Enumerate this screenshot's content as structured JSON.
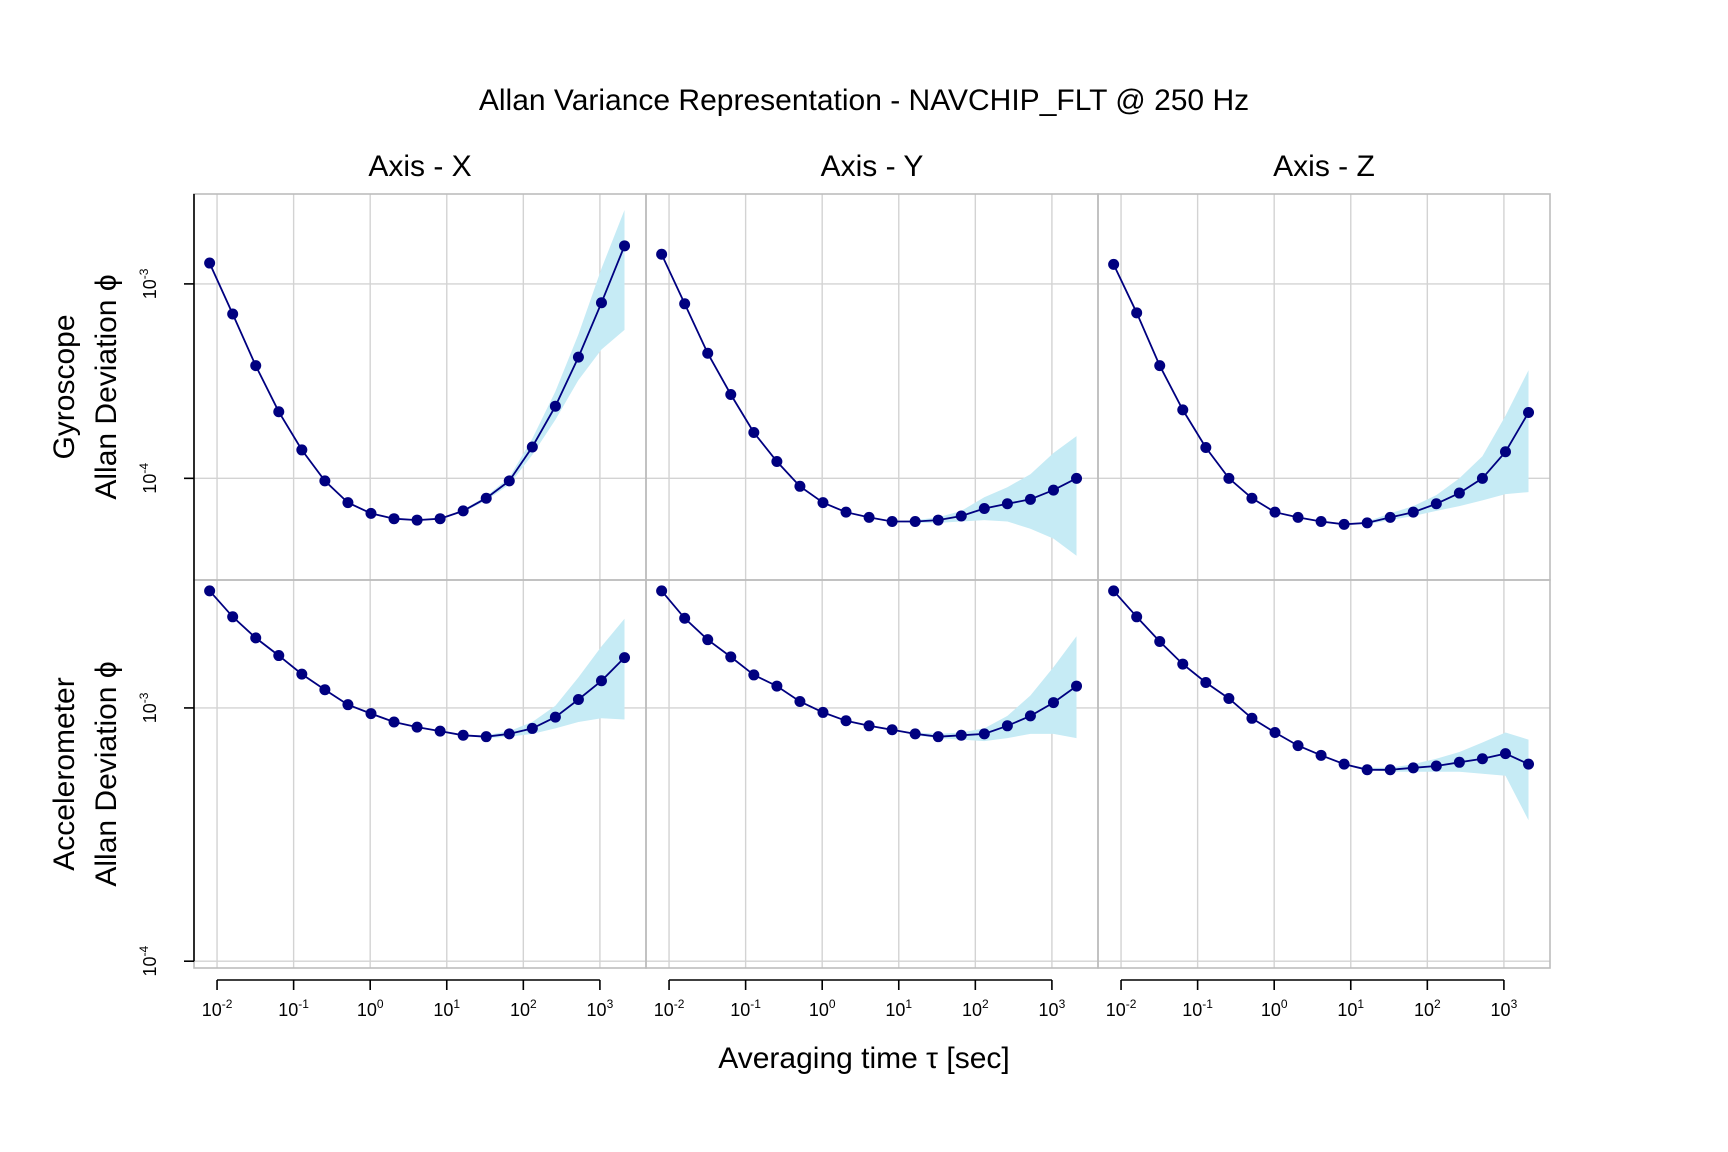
{
  "chart_data": {
    "type": "line",
    "title": "Allan Variance Representation - NAVCHIP_FLT @ 250 Hz",
    "xlabel": "Averaging time τ [sec]",
    "x_scale": "log",
    "y_scale": "log",
    "xlim": [
      0.005,
      4000
    ],
    "x_ticks": [
      "10^-2",
      "10^-1",
      "10^0",
      "10^1",
      "10^2",
      "10^3"
    ],
    "grid": true,
    "colors": {
      "line": "#000080",
      "marker": "#000080",
      "band": "#c6ebf5",
      "grid": "#d3d3d3",
      "frame": "#bdbdbd"
    },
    "tau": [
      0.008,
      0.016,
      0.032,
      0.064,
      0.128,
      0.256,
      0.512,
      1.024,
      2.048,
      4.096,
      8.192,
      16.384,
      32.768,
      65.536,
      131.072,
      262.144,
      524.288,
      1048.576,
      2097.152
    ],
    "columns": [
      "Axis - X",
      "Axis - Y",
      "Axis - Z"
    ],
    "rows": [
      {
        "label_line1": "Gyroscope",
        "label_line2": "Allan Deviation ϕ",
        "ylim": [
          3e-05,
          0.0029
        ],
        "y_ticks": [
          "10^-4",
          "10^-3"
        ],
        "panels": [
          {
            "axis": "Axis - X",
            "values": [
              0.00128,
              0.0007,
              0.00038,
              0.00022,
              0.00014,
              9.7e-05,
              7.5e-05,
              6.6e-05,
              6.2e-05,
              6.1e-05,
              6.2e-05,
              6.8e-05,
              7.9e-05,
              9.7e-05,
              0.000145,
              0.000235,
              0.00042,
              0.0008,
              0.00157
            ],
            "lower": [
              0.00128,
              0.0007,
              0.00038,
              0.00022,
              0.00014,
              9.7e-05,
              7.5e-05,
              6.6e-05,
              6.2e-05,
              6.1e-05,
              6.2e-05,
              6.7e-05,
              7.7e-05,
              9.3e-05,
              0.000132,
              0.0002,
              0.00032,
              0.00046,
              0.00058
            ],
            "upper": [
              0.00128,
              0.0007,
              0.00038,
              0.00022,
              0.00014,
              9.7e-05,
              7.5e-05,
              6.6e-05,
              6.2e-05,
              6.1e-05,
              6.2e-05,
              6.9e-05,
              8.1e-05,
              0.000101,
              0.00016,
              0.00028,
              0.00055,
              0.0012,
              0.0024
            ]
          },
          {
            "axis": "Axis - Y",
            "values": [
              0.00142,
              0.00079,
              0.00044,
              0.00027,
              0.000172,
              0.000122,
              9.1e-05,
              7.5e-05,
              6.7e-05,
              6.3e-05,
              6e-05,
              6e-05,
              6.1e-05,
              6.4e-05,
              7e-05,
              7.4e-05,
              7.8e-05,
              8.7e-05,
              0.0001
            ],
            "lower": [
              0.00142,
              0.00079,
              0.00044,
              0.00027,
              0.000172,
              0.000122,
              9.1e-05,
              7.5e-05,
              6.7e-05,
              6.3e-05,
              6e-05,
              5.9e-05,
              5.9e-05,
              6e-05,
              6.1e-05,
              6e-05,
              5.5e-05,
              4.9e-05,
              4e-05
            ],
            "upper": [
              0.00142,
              0.00079,
              0.00044,
              0.00027,
              0.000172,
              0.000122,
              9.1e-05,
              7.5e-05,
              6.7e-05,
              6.3e-05,
              6e-05,
              6.1e-05,
              6.3e-05,
              6.8e-05,
              8e-05,
              9e-05,
              0.000105,
              0.000135,
              0.000165
            ]
          },
          {
            "axis": "Axis - Z",
            "values": [
              0.00126,
              0.00071,
              0.00038,
              0.000225,
              0.000144,
              0.0001,
              7.9e-05,
              6.7e-05,
              6.3e-05,
              6e-05,
              5.8e-05,
              5.9e-05,
              6.3e-05,
              6.7e-05,
              7.4e-05,
              8.4e-05,
              0.0001,
              0.000137,
              0.000218
            ],
            "lower": [
              0.00126,
              0.00071,
              0.00038,
              0.000225,
              0.000144,
              0.0001,
              7.9e-05,
              6.7e-05,
              6.3e-05,
              6e-05,
              5.8e-05,
              5.8e-05,
              6.1e-05,
              6.4e-05,
              6.8e-05,
              7.2e-05,
              7.7e-05,
              8.3e-05,
              8.5e-05
            ],
            "upper": [
              0.00126,
              0.00071,
              0.00038,
              0.000225,
              0.000144,
              0.0001,
              7.9e-05,
              6.7e-05,
              6.3e-05,
              6e-05,
              5.8e-05,
              6e-05,
              6.6e-05,
              7.2e-05,
              8.2e-05,
              0.0001,
              0.00013,
              0.00021,
              0.00036
            ]
          }
        ]
      },
      {
        "label_line1": "Accelerometer",
        "label_line2": "Allan Deviation ϕ",
        "ylim": [
          9.4e-05,
          0.0032
        ],
        "y_ticks": [
          "10^-4",
          "10^-3"
        ],
        "panels": [
          {
            "axis": "Axis - X",
            "values": [
              0.0029,
              0.00229,
              0.00189,
              0.00161,
              0.00136,
              0.00118,
              0.00103,
              0.00095,
              0.00088,
              0.00084,
              0.00081,
              0.00078,
              0.00077,
              0.00079,
              0.00083,
              0.00092,
              0.00108,
              0.00128,
              0.00158
            ],
            "lower": [
              0.0029,
              0.00229,
              0.00189,
              0.00161,
              0.00136,
              0.00118,
              0.00103,
              0.00095,
              0.00088,
              0.00084,
              0.00081,
              0.00078,
              0.00076,
              0.00077,
              0.00079,
              0.00083,
              0.00088,
              0.00091,
              0.0009
            ],
            "upper": [
              0.0029,
              0.00229,
              0.00189,
              0.00161,
              0.00136,
              0.00118,
              0.00103,
              0.00095,
              0.00088,
              0.00084,
              0.00081,
              0.00078,
              0.00078,
              0.00081,
              0.00088,
              0.00102,
              0.00132,
              0.00175,
              0.00225
            ]
          },
          {
            "axis": "Axis - Y",
            "values": [
              0.0029,
              0.00226,
              0.00186,
              0.00159,
              0.00135,
              0.00122,
              0.00106,
              0.00096,
              0.00089,
              0.00085,
              0.00082,
              0.00079,
              0.00077,
              0.00078,
              0.00079,
              0.00085,
              0.00093,
              0.00105,
              0.00122
            ],
            "lower": [
              0.0029,
              0.00226,
              0.00186,
              0.00159,
              0.00135,
              0.00122,
              0.00106,
              0.00096,
              0.00089,
              0.00085,
              0.00082,
              0.00078,
              0.00076,
              0.00075,
              0.00074,
              0.00076,
              0.00079,
              0.00079,
              0.00076
            ],
            "upper": [
              0.0029,
              0.00226,
              0.00186,
              0.00159,
              0.00135,
              0.00122,
              0.00106,
              0.00096,
              0.00089,
              0.00085,
              0.00082,
              0.0008,
              0.00079,
              0.0008,
              0.00083,
              0.00093,
              0.00112,
              0.00145,
              0.00192
            ]
          },
          {
            "axis": "Axis - Z",
            "values": [
              0.0029,
              0.00229,
              0.00183,
              0.00149,
              0.00126,
              0.00109,
              0.00091,
              0.0008,
              0.00071,
              0.00065,
              0.0006,
              0.00057,
              0.00057,
              0.00058,
              0.00059,
              0.00061,
              0.00063,
              0.00066,
              0.0006
            ],
            "lower": [
              0.0029,
              0.00229,
              0.00183,
              0.00149,
              0.00126,
              0.00109,
              0.00091,
              0.0008,
              0.00071,
              0.00065,
              0.0006,
              0.00057,
              0.00056,
              0.00056,
              0.00056,
              0.00056,
              0.00055,
              0.00054,
              0.00036
            ],
            "upper": [
              0.0029,
              0.00229,
              0.00183,
              0.00149,
              0.00126,
              0.00109,
              0.00091,
              0.0008,
              0.00071,
              0.00065,
              0.0006,
              0.00058,
              0.00058,
              0.0006,
              0.00063,
              0.00067,
              0.00073,
              0.0008,
              0.00075
            ]
          }
        ]
      }
    ]
  }
}
